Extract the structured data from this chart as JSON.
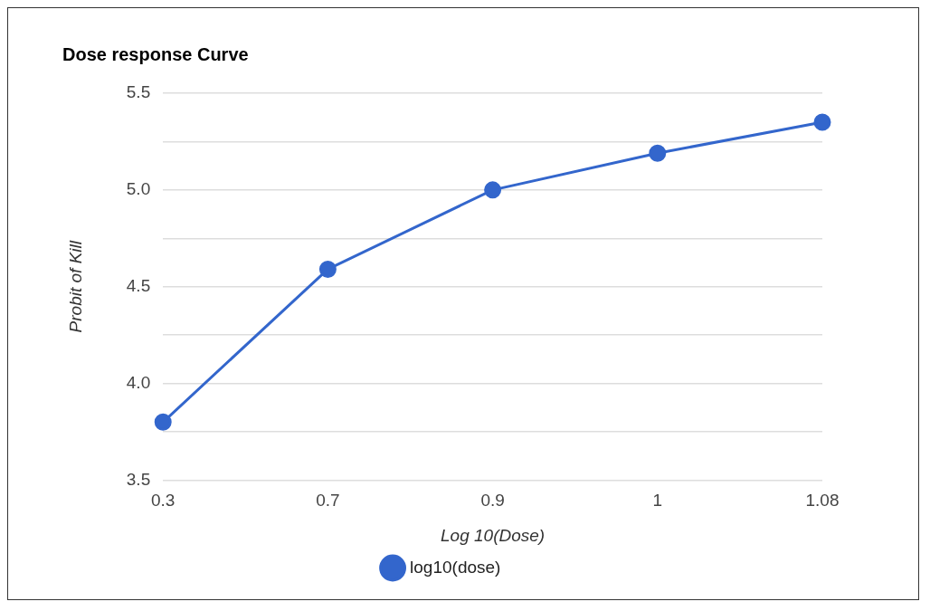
{
  "chart_data": {
    "type": "line",
    "title": "Dose response Curve",
    "xlabel": "Log 10(Dose)",
    "ylabel": "Probit of Kill",
    "categories": [
      "0.3",
      "0.7",
      "0.9",
      "1",
      "1.08"
    ],
    "series": [
      {
        "name": "log10(dose)",
        "color": "#3366cc",
        "values": [
          3.8,
          4.59,
          5.0,
          5.19,
          5.35
        ]
      }
    ],
    "ylim": [
      3.5,
      5.5
    ],
    "yticks": [
      3.5,
      {
        "value": 3.75,
        "label": null
      },
      {
        "value": 4,
        "label": "4.0"
      },
      {
        "value": 4.25,
        "label": null
      },
      4.5,
      {
        "value": 4.75,
        "label": null
      },
      {
        "value": 5,
        "label": "5.0"
      },
      {
        "value": 5.25,
        "label": null
      },
      5.5
    ],
    "grid": "y",
    "legend": "bottom",
    "marker": "circle",
    "line_style": "solid"
  }
}
